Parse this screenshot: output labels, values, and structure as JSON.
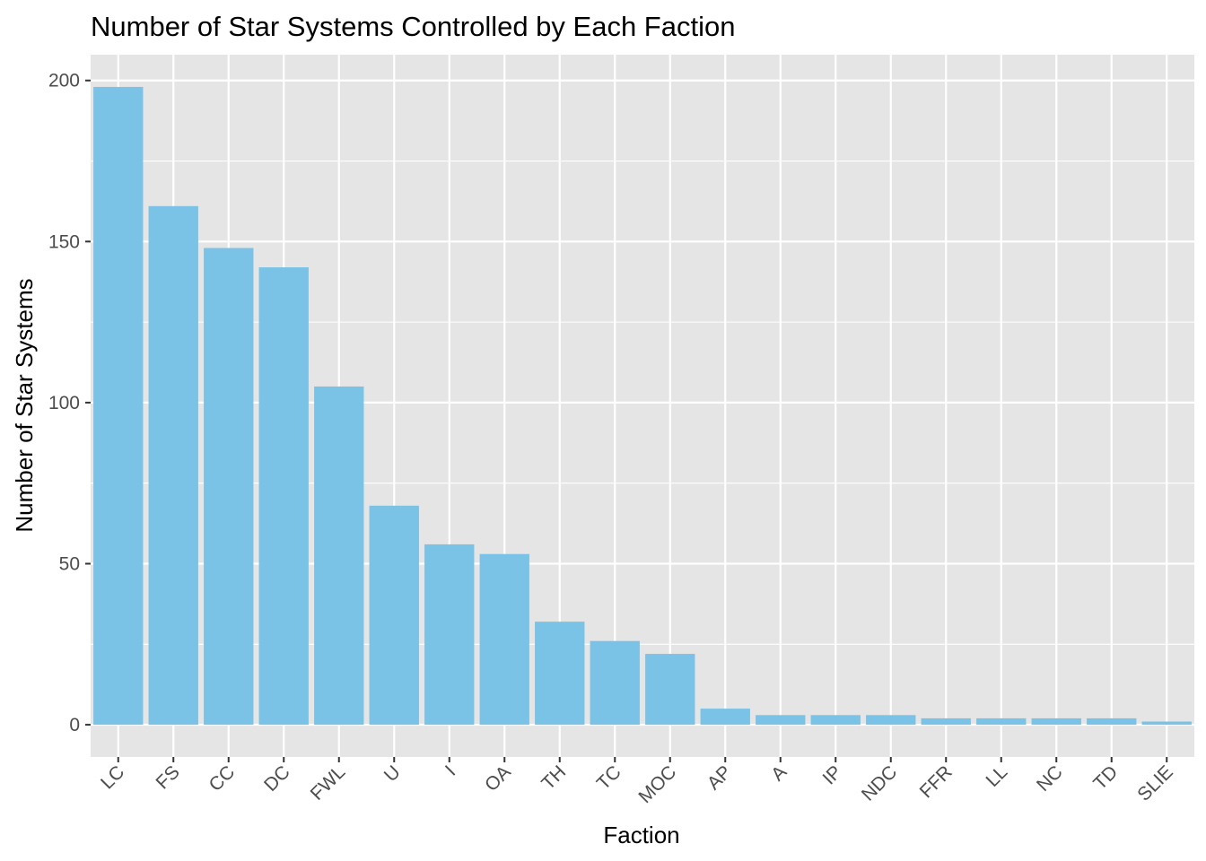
{
  "chart_data": {
    "type": "bar",
    "title": "Number of Star Systems Controlled by Each Faction",
    "xlabel": "Faction",
    "ylabel": "Number of Star Systems",
    "categories": [
      "LC",
      "FS",
      "CC",
      "DC",
      "FWL",
      "U",
      "I",
      "OA",
      "TH",
      "TC",
      "MOC",
      "AP",
      "A",
      "IP",
      "NDC",
      "FFR",
      "LL",
      "NC",
      "TD",
      "SLIE"
    ],
    "values": [
      198,
      161,
      148,
      142,
      105,
      68,
      56,
      53,
      32,
      26,
      22,
      5,
      3,
      3,
      3,
      2,
      2,
      2,
      2,
      1
    ],
    "ylim": [
      -10,
      208
    ],
    "yticks": [
      0,
      50,
      100,
      150,
      200
    ],
    "grid": true,
    "colors": {
      "bar": "#7AC3E6",
      "panel": "#E5E5E5",
      "grid": "#FFFFFF",
      "text": "#000000",
      "tick": "#4D4D4D"
    }
  }
}
